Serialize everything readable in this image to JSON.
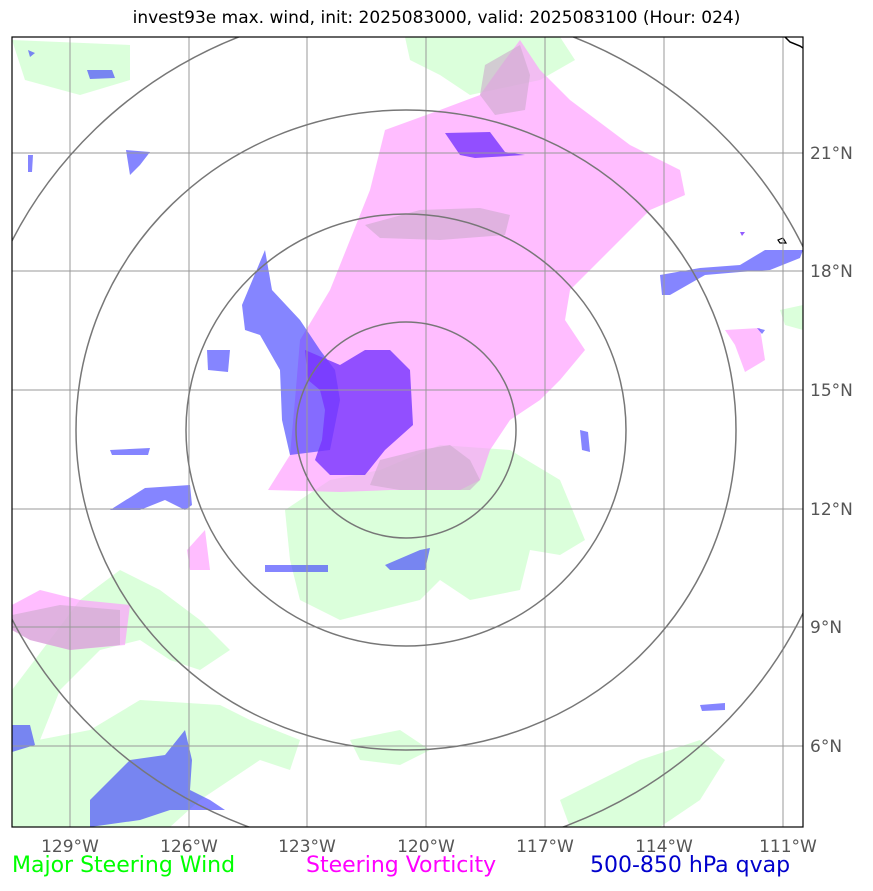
{
  "title": "invest93e max. wind, init: 2025083000, valid: 2025083100 (Hour: 024)",
  "legend": {
    "wind": {
      "label": "Major Steering Wind",
      "color": "#00ff00"
    },
    "vorticity": {
      "label": "Steering Vorticity",
      "color": "#ff00ff"
    },
    "qvap": {
      "label": "500-850 hPa qvap",
      "color": "#0000cc"
    }
  },
  "axes": {
    "longitude_ticks": [
      "129°W",
      "126°W",
      "123°W",
      "120°W",
      "117°W",
      "114°W",
      "111°W"
    ],
    "latitude_ticks": [
      "21°N",
      "18°N",
      "15°N",
      "12°N",
      "9°N",
      "6°N"
    ]
  },
  "colors": {
    "wind_fill": "#ccffcc",
    "vorticity_fill": "#ff99ff",
    "qvap_fill": "#3333ff",
    "grid": "#999999",
    "rings": "#777777"
  },
  "range_rings": {
    "center_lon": -120.5,
    "center_lat": 14.0,
    "count": 4
  }
}
